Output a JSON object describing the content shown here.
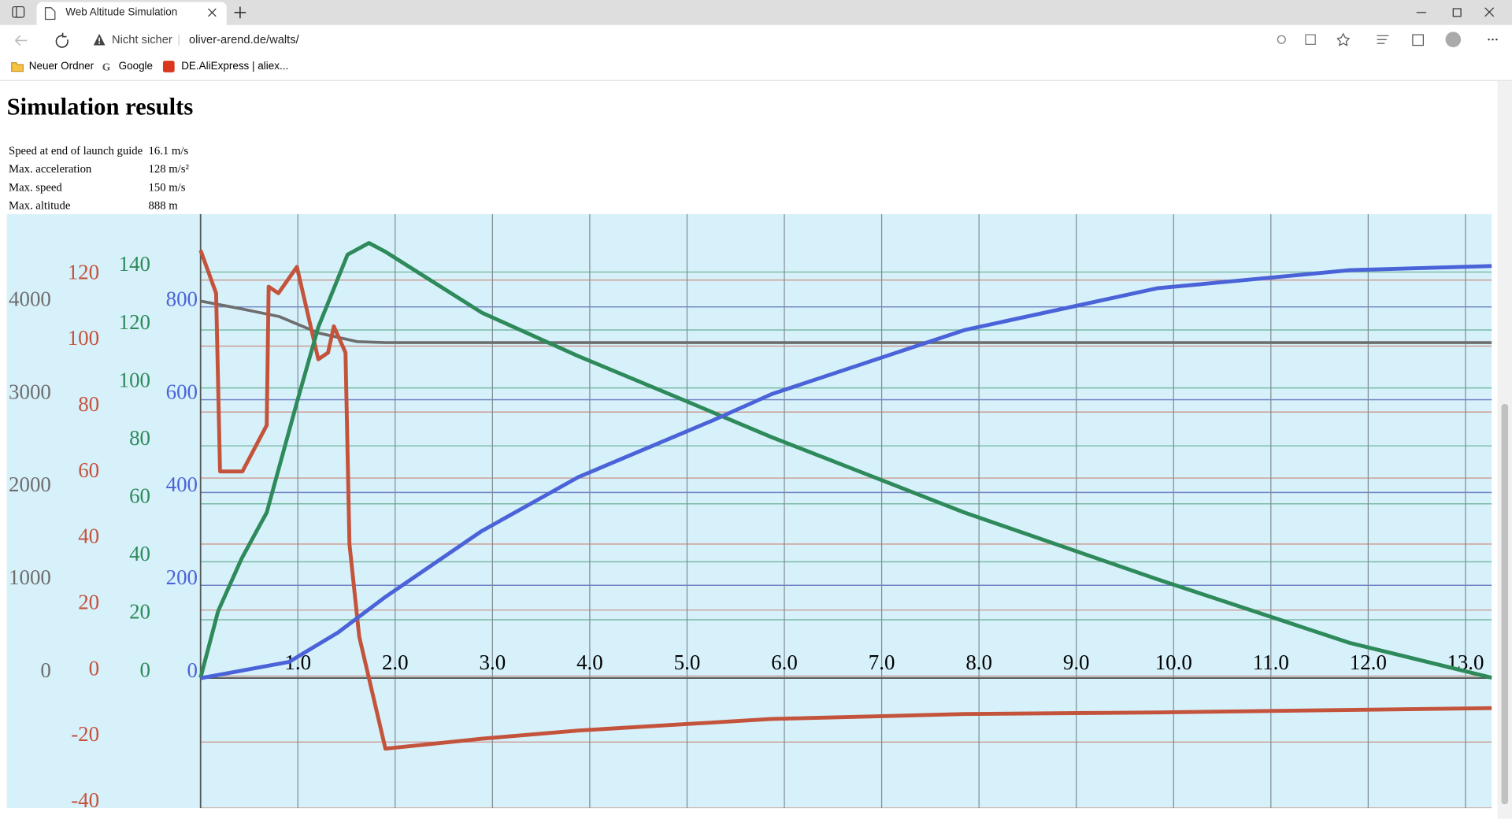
{
  "browser": {
    "tab_title": "Web Altitude Simulation",
    "security": "Nicht sicher",
    "url": "oliver-arend.de/walts/",
    "bookmarks": [
      "Neuer Ordner",
      "Google",
      "DE.AliExpress | aliex..."
    ]
  },
  "page": {
    "heading": "Simulation results",
    "results": [
      [
        "Speed at end of launch guide",
        "16.1 m/s"
      ],
      [
        "Max. acceleration",
        "128 m/s²"
      ],
      [
        "Max. speed",
        "150 m/s"
      ],
      [
        "Max. altitude",
        "888 m"
      ]
    ]
  },
  "chart_data": {
    "type": "line",
    "xlim": [
      0,
      13.27
    ],
    "xticks": [
      {
        "value": 1,
        "label": "1.0"
      },
      {
        "value": 2,
        "label": "2.0"
      },
      {
        "value": 3,
        "label": "3.0"
      },
      {
        "value": 4,
        "label": "4.0"
      },
      {
        "value": 5,
        "label": "5.0"
      },
      {
        "value": 6,
        "label": "6.0"
      },
      {
        "value": 7,
        "label": "7.0"
      },
      {
        "value": 8,
        "label": "8.0"
      },
      {
        "value": 9,
        "label": "9.0"
      },
      {
        "value": 10,
        "label": "10.0"
      },
      {
        "value": 11,
        "label": "11.0"
      },
      {
        "value": 12,
        "label": "12.0"
      },
      {
        "value": 13,
        "label": "13.0"
      }
    ],
    "grid": true,
    "series": [
      {
        "color": "#6e6e6e",
        "ylim": [
          -1400,
          5000
        ],
        "yticks": [
          0,
          1000,
          2000,
          3000,
          4000
        ],
        "x": [
          0,
          0.42,
          0.81,
          1.21,
          1.61,
          1.9,
          13.27
        ],
        "values": [
          4063,
          3979,
          3896,
          3719,
          3625,
          3615,
          3615
        ]
      },
      {
        "color": "#c4533c",
        "ylim": [
          -40,
          140
        ],
        "yticks": [
          -40,
          -20,
          0,
          20,
          40,
          60,
          80,
          100,
          120
        ],
        "x": [
          0,
          0.16,
          0.2,
          0.43,
          0.68,
          0.7,
          0.8,
          0.99,
          1.21,
          1.31,
          1.37,
          1.49,
          1.53,
          1.63,
          1.9,
          2.89,
          3.88,
          5.87,
          7.85,
          9.83,
          13.27
        ],
        "values": [
          129,
          116,
          62,
          62,
          76,
          118,
          116,
          124,
          96,
          98,
          106,
          98,
          40,
          12,
          -22,
          -19,
          -16.5,
          -13,
          -11.5,
          -11,
          -9.7
        ]
      },
      {
        "color": "#2e8a5a",
        "ylim": [
          -45,
          160
        ],
        "yticks": [
          0,
          20,
          40,
          60,
          80,
          100,
          120,
          140
        ],
        "x": [
          0,
          0.18,
          0.42,
          0.68,
          0.99,
          1.21,
          1.51,
          1.73,
          1.9,
          2.89,
          3.88,
          4.88,
          5.87,
          7.85,
          9.83,
          11.81,
          13.27
        ],
        "values": [
          0,
          23,
          41,
          57,
          95,
          121,
          146,
          150,
          147,
          126,
          111,
          97,
          83,
          57,
          34,
          12,
          0
        ]
      },
      {
        "color": "#4a63d8",
        "ylim": [
          -280,
          1000
        ],
        "yticks": [
          0,
          200,
          400,
          600,
          800
        ],
        "x": [
          0,
          0.91,
          1.41,
          1.9,
          2.89,
          3.88,
          5.27,
          5.87,
          7.85,
          9.83,
          11.81,
          13.27
        ],
        "values": [
          0,
          35,
          98,
          175,
          317,
          433,
          556,
          612,
          750,
          840,
          879,
          888
        ]
      }
    ]
  }
}
